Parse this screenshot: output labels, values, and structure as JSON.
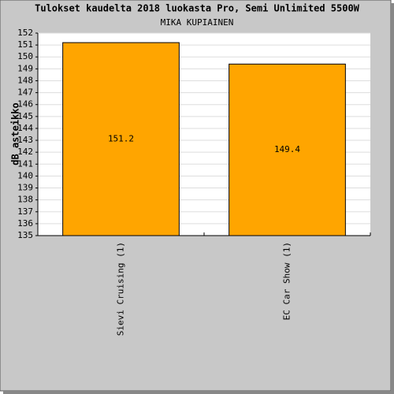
{
  "chart_data": {
    "type": "bar",
    "title": "Tulokset kaudelta 2018 luokasta Pro, Semi Unlimited 5500W",
    "subtitle": "MIKA KUPIAINEN",
    "y_label": "dB asteikko",
    "categories": [
      "Sievi Cruising (1)",
      "EC Car Show (1)"
    ],
    "values": [
      151.2,
      149.4
    ],
    "color": "#ffa500",
    "ylim": [
      135,
      152
    ],
    "yticks": [
      135,
      136,
      137,
      138,
      139,
      140,
      141,
      142,
      143,
      144,
      145,
      146,
      147,
      148,
      149,
      150,
      151,
      152
    ],
    "grid": true
  }
}
